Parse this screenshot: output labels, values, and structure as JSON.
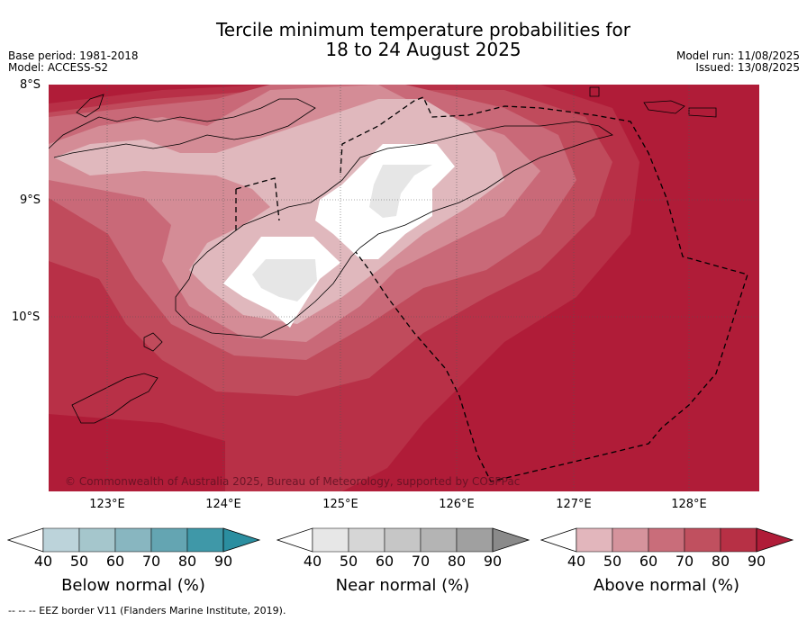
{
  "title": {
    "line1": "Tercile minimum temperature probabilities for",
    "line2": "18 to 24 August 2025"
  },
  "meta_left": {
    "base_period": "Base period: 1981-2018",
    "model": "Model: ACCESS-S2"
  },
  "meta_right": {
    "model_run": "Model run: 11/08/2025",
    "issued": "Issued: 13/08/2025"
  },
  "map": {
    "lat_labels": [
      "8°S",
      "9°S",
      "10°S"
    ],
    "lon_labels": [
      "123°E",
      "124°E",
      "125°E",
      "126°E",
      "127°E",
      "128°E"
    ],
    "copyright": "© Commonwealth of Australia 2025, Bureau of Meteorology, supported by COSPPac"
  },
  "colorbars": [
    {
      "label": "Below normal (%)",
      "ticks": [
        "40",
        "50",
        "60",
        "70",
        "80",
        "90"
      ],
      "colors": [
        "#ffffff",
        "#bcd3da",
        "#a5c6cc",
        "#88b6c0",
        "#64a5b2",
        "#3f98a8",
        "#2b8ea0"
      ]
    },
    {
      "label": "Near normal (%)",
      "ticks": [
        "40",
        "50",
        "60",
        "70",
        "80",
        "90"
      ],
      "colors": [
        "#ffffff",
        "#e7e7e7",
        "#d6d6d6",
        "#c6c6c6",
        "#b4b4b4",
        "#a0a0a0",
        "#8a8a8a"
      ]
    },
    {
      "label": "Above normal (%)",
      "ticks": [
        "40",
        "50",
        "60",
        "70",
        "80",
        "90"
      ],
      "colors": [
        "#ffffff",
        "#e2b6bc",
        "#d5939c",
        "#c96d7a",
        "#c0505f",
        "#b73045",
        "#b01c38"
      ]
    }
  ],
  "footnote": "--  --  -- EEZ border V11 (Flanders Marine Institute, 2019)."
}
